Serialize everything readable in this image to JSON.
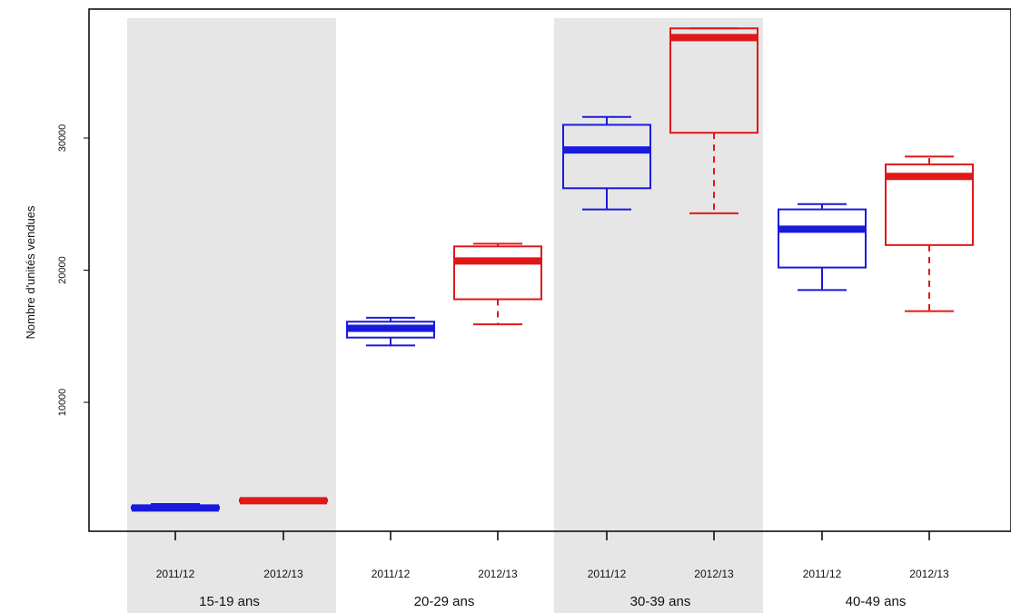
{
  "chart_data": {
    "type": "boxplot",
    "ylabel": "Nombre d'unités vendues",
    "ylim": [
      0,
      40000
    ],
    "yticks": [
      10000,
      20000,
      30000
    ],
    "groups": [
      {
        "label": "15-19 ans",
        "shaded": true
      },
      {
        "label": "20-29 ans",
        "shaded": false
      },
      {
        "label": "30-39 ans",
        "shaded": true
      },
      {
        "label": "40-49 ans",
        "shaded": false
      }
    ],
    "series": [
      {
        "name": "2011/12",
        "color": "#1a1adc",
        "dashed_whiskers": false
      },
      {
        "name": "2012/13",
        "color": "#e01818",
        "dashed_whiskers": true
      }
    ],
    "boxes": [
      {
        "group": 0,
        "series": 0,
        "label": "2011/12",
        "min": 1900,
        "q1": 1950,
        "median": 2000,
        "q3": 2100,
        "max": 2300
      },
      {
        "group": 0,
        "series": 1,
        "label": "2012/13",
        "min": 2400,
        "q1": 2500,
        "median": 2550,
        "q3": 2650,
        "max": 2750
      },
      {
        "group": 1,
        "series": 0,
        "label": "2011/12",
        "min": 14300,
        "q1": 14900,
        "median": 15600,
        "q3": 16100,
        "max": 16400
      },
      {
        "group": 1,
        "series": 1,
        "label": "2012/13",
        "min": 15900,
        "q1": 17800,
        "median": 20700,
        "q3": 21800,
        "max": 22000
      },
      {
        "group": 2,
        "series": 0,
        "label": "2011/12",
        "min": 24600,
        "q1": 26200,
        "median": 29100,
        "q3": 31000,
        "max": 31600
      },
      {
        "group": 2,
        "series": 1,
        "label": "2012/13",
        "min": 24300,
        "q1": 30400,
        "median": 37600,
        "q3": 38300,
        "max": 38300
      },
      {
        "group": 3,
        "series": 0,
        "label": "2011/12",
        "min": 18500,
        "q1": 20200,
        "median": 23100,
        "q3": 24600,
        "max": 25000
      },
      {
        "group": 3,
        "series": 1,
        "label": "2012/13",
        "min": 16900,
        "q1": 21900,
        "median": 27100,
        "q3": 28000,
        "max": 28600
      }
    ]
  }
}
